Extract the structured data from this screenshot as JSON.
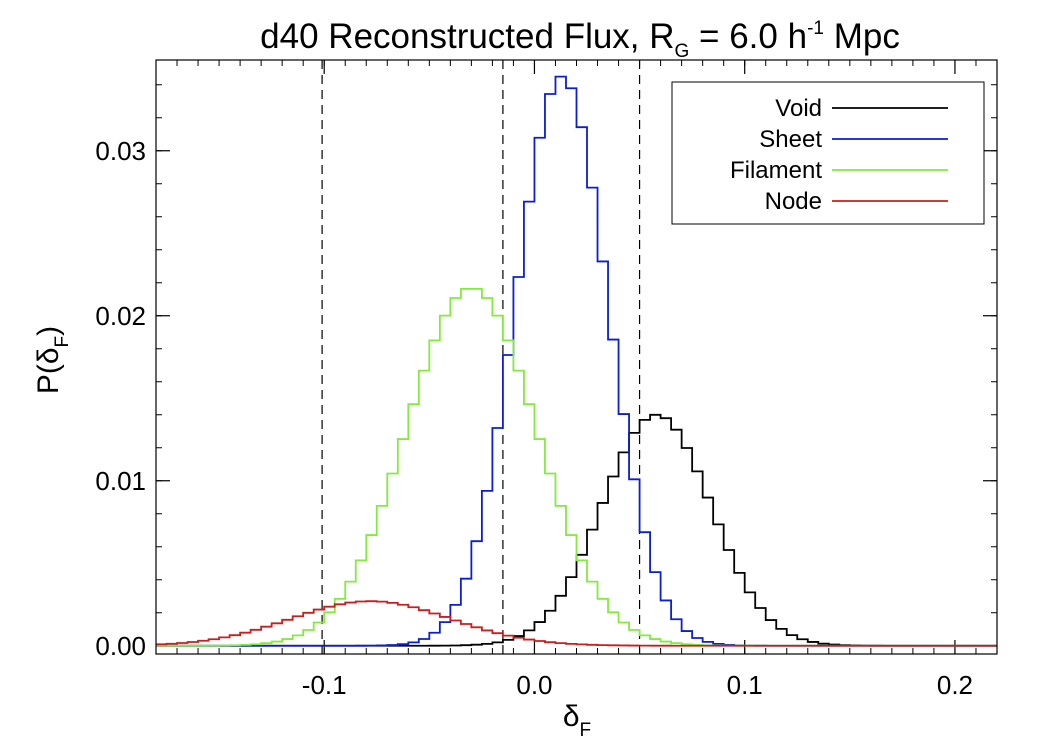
{
  "chart_data": {
    "type": "histogram-step",
    "title": {
      "prefix": "d40 Reconstructed Flux, R",
      "subscript": "G",
      "middle": " = 6.0 h",
      "superscript": "-1",
      "suffix": " Mpc"
    },
    "xlabel": {
      "main": "δ",
      "sub": "F"
    },
    "ylabel": {
      "main": "P(δ",
      "sub": "F",
      "close": ")"
    },
    "xlim": [
      -0.18,
      0.22
    ],
    "ylim": [
      -0.0005,
      0.0355
    ],
    "xticks": [
      {
        "value": -0.1,
        "label": "-0.1"
      },
      {
        "value": 0.0,
        "label": "0.0"
      },
      {
        "value": 0.1,
        "label": "0.1"
      },
      {
        "value": 0.2,
        "label": "0.2"
      }
    ],
    "yticks": [
      {
        "value": 0.0,
        "label": "0.00"
      },
      {
        "value": 0.01,
        "label": "0.01"
      },
      {
        "value": 0.02,
        "label": "0.02"
      },
      {
        "value": 0.03,
        "label": "0.03"
      }
    ],
    "x_minor_step": 0.01,
    "y_minor_step": 0.002,
    "bin_start": -0.18,
    "bin_width": 0.005,
    "vlines": [
      -0.101,
      -0.015,
      0.05
    ],
    "legend_position": "top-right",
    "series": [
      {
        "name": "Void",
        "color": "#000000",
        "center": 0.058,
        "sigma": 0.026,
        "peak": 0.014
      },
      {
        "name": "Sheet",
        "color": "#0a1ed2",
        "center": 0.013,
        "sigma": 0.022,
        "peak": 0.0345
      },
      {
        "name": "Filament",
        "color": "#82eb3c",
        "center": -0.03,
        "sigma": 0.031,
        "peak": 0.0217
      },
      {
        "name": "Node",
        "color": "#c81e1e",
        "center": -0.078,
        "sigma": 0.038,
        "peak": 0.0027
      }
    ]
  }
}
